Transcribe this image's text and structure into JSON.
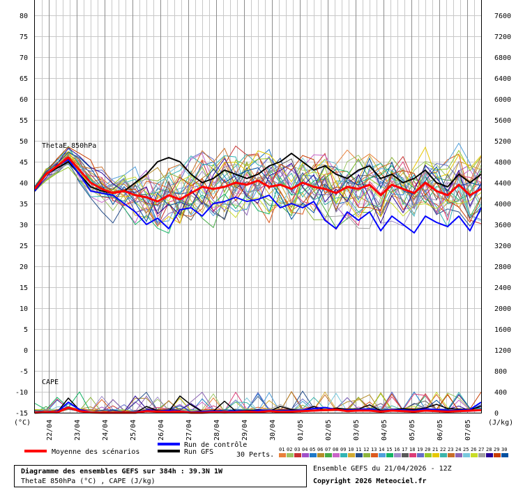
{
  "chart_data": {
    "type": "line",
    "left_axis": {
      "unit_label": "(°C)",
      "ticks": [
        "80",
        "75",
        "70",
        "65",
        "60",
        "55",
        "50",
        "45",
        "40",
        "35",
        "30",
        "25",
        "20",
        "15",
        "10",
        "5",
        "0",
        "-5",
        "-10",
        "-15"
      ]
    },
    "right_axis": {
      "unit_label": "(J/kg)",
      "ticks": [
        "7600",
        "7200",
        "6800",
        "6400",
        "6000",
        "5600",
        "5200",
        "4800",
        "4400",
        "4000",
        "3600",
        "3200",
        "2800",
        "2400",
        "2000",
        "1600",
        "1200",
        "800",
        "400",
        "0"
      ]
    },
    "x_labels": [
      "22/04",
      "23/04",
      "24/04",
      "25/04",
      "26/04",
      "27/04",
      "28/04",
      "29/04",
      "30/04",
      "01/05",
      "02/05",
      "03/05",
      "04/05",
      "05/05",
      "06/05",
      "07/05"
    ],
    "annotations": {
      "thetae": "ThetaE 850hPa",
      "cape": "CAPE"
    },
    "legend": {
      "mean": "Moyenne des scénarios",
      "control": "Run de contrôle",
      "gfs": "Run GFS",
      "perts": "30 Perts.",
      "numbers": [
        "01",
        "02",
        "03",
        "04",
        "05",
        "06",
        "07",
        "08",
        "09",
        "10",
        "11",
        "12",
        "13",
        "14",
        "15",
        "16",
        "17",
        "18",
        "19",
        "20",
        "21",
        "22",
        "23",
        "24",
        "25",
        "26",
        "27",
        "28",
        "29",
        "30"
      ]
    },
    "colors": {
      "mean": "#ff0000",
      "control": "#0000ff",
      "gfs": "#000000",
      "perts": [
        "#e8803a",
        "#9cc464",
        "#c83232",
        "#a050c8",
        "#1e78c8",
        "#b48c28",
        "#46aa46",
        "#c864c8",
        "#32b4b4",
        "#d2aa32",
        "#28508c",
        "#8cb43c",
        "#dc5a1e",
        "#50a0dc",
        "#14b464",
        "#a08cc8",
        "#5a5a5a",
        "#dc3c78",
        "#646ec8",
        "#96c828",
        "#e6c800",
        "#3cb4aa",
        "#c86e28",
        "#8c64b4",
        "#78c8dc",
        "#c8dc28",
        "#a0a0a0",
        "#280096",
        "#c83c00",
        "#0050a0"
      ]
    },
    "series": {
      "mean_thetae": [
        38.5,
        42,
        44,
        46,
        43,
        40,
        38.5,
        37.5,
        38,
        37,
        36.5,
        35.5,
        37,
        36,
        37.5,
        39,
        38.5,
        39,
        40,
        39.5,
        40.5,
        39,
        39.5,
        38.5,
        40,
        39,
        38.5,
        37.5,
        39,
        38.5,
        39.5,
        37,
        39.5,
        38.5,
        37.5,
        40,
        38,
        37,
        39.5,
        37,
        38.5
      ],
      "control_thetae": [
        38,
        42,
        44,
        45.5,
        42,
        38,
        37.5,
        37,
        35,
        33,
        30,
        31.5,
        29,
        33.5,
        34,
        32,
        35,
        35.5,
        36.5,
        35.5,
        36,
        37,
        34,
        35,
        34,
        35.5,
        31,
        29,
        33,
        31,
        33,
        28.5,
        32,
        30,
        28,
        32,
        30.5,
        29.5,
        32,
        28.5,
        34
      ],
      "gfs_thetae": [
        38,
        42,
        43.5,
        45,
        42,
        39,
        38,
        37.5,
        38,
        40,
        42,
        45,
        46,
        45,
        42,
        40,
        41,
        43,
        42,
        41,
        42,
        44,
        45,
        47,
        45,
        43,
        44,
        42,
        41,
        43,
        44,
        41,
        42,
        40,
        41,
        43,
        40,
        39,
        42,
        40,
        42
      ],
      "mean_cape": [
        0,
        10,
        5,
        100,
        30,
        5,
        0,
        0,
        0,
        0,
        30,
        20,
        15,
        20,
        0,
        0,
        10,
        5,
        10,
        20,
        10,
        30,
        15,
        20,
        30,
        40,
        50,
        60,
        30,
        40,
        40,
        20,
        40,
        30,
        20,
        40,
        30,
        20,
        30,
        40,
        50
      ],
      "control_cape": [
        0,
        20,
        10,
        200,
        60,
        10,
        0,
        0,
        0,
        10,
        50,
        30,
        40,
        30,
        10,
        20,
        30,
        20,
        30,
        30,
        40,
        50,
        30,
        40,
        50,
        80,
        100,
        60,
        50,
        60,
        70,
        30,
        60,
        50,
        40,
        70,
        60,
        40,
        50,
        60,
        200
      ],
      "gfs_cape": [
        0,
        10,
        10,
        280,
        50,
        0,
        0,
        0,
        0,
        0,
        120,
        40,
        20,
        320,
        150,
        20,
        30,
        220,
        30,
        40,
        50,
        30,
        120,
        60,
        40,
        120,
        50,
        90,
        60,
        70,
        150,
        40,
        60,
        80,
        60,
        90,
        160,
        80,
        70,
        60,
        120
      ]
    }
  },
  "footer": {
    "title": "Diagramme des ensembles GEFS sur 384h : 39.3N 1W",
    "subtitle": "ThetaE 850hPa (°C) , CAPE (J/kg)",
    "run": "Ensemble GEFS du 21/04/2026 - 12Z",
    "copyright": "Copyright 2026 Meteociel.fr"
  }
}
